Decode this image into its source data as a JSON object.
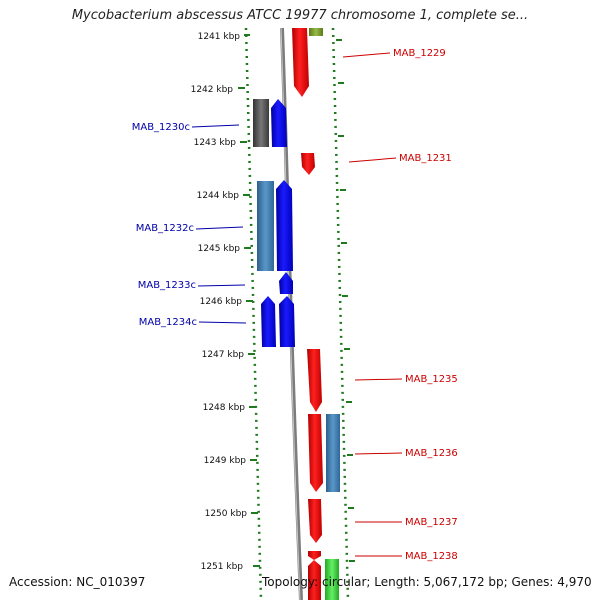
{
  "title": "Mycobacterium abscessus ATCC 19977 chromosome 1, complete se...",
  "footer": {
    "accession": "Accession: NC_010397",
    "summary": "Topology: circular; Length: 5,067,172 bp; Genes: 4,970"
  },
  "colors": {
    "tick": "#1f7a1f",
    "backbone": "#8a8a8a",
    "forward_gene": "#ff0000",
    "reverse_gene": "#0000ee",
    "forward_label": "#cc0000",
    "reverse_label": "#0000aa",
    "steelblue_feature": "#3f7fb5",
    "gray_feature": "#555555",
    "green_feature": "#33cc33",
    "olive_feature": "#7a9a2a"
  },
  "scale_ticks": [
    {
      "kbp": 1241,
      "label": "1241 kbp"
    },
    {
      "kbp": 1242,
      "label": "1242 kbp"
    },
    {
      "kbp": 1243,
      "label": "1243 kbp"
    },
    {
      "kbp": 1244,
      "label": "1244 kbp"
    },
    {
      "kbp": 1245,
      "label": "1245 kbp"
    },
    {
      "kbp": 1246,
      "label": "1246 kbp"
    },
    {
      "kbp": 1247,
      "label": "1247 kbp"
    },
    {
      "kbp": 1248,
      "label": "1248 kbp"
    },
    {
      "kbp": 1249,
      "label": "1249 kbp"
    },
    {
      "kbp": 1250,
      "label": "1250 kbp"
    },
    {
      "kbp": 1251,
      "label": "1251 kbp"
    }
  ],
  "genes": [
    {
      "label": "MAB_1229",
      "strand": "+",
      "start_kbp": 1240.8,
      "end_kbp": 1242.2
    },
    {
      "label": "MAB_1230c",
      "strand": "-",
      "start_kbp": 1242.2,
      "end_kbp": 1243.1
    },
    {
      "label": "MAB_1231",
      "strand": "+",
      "start_kbp": 1243.2,
      "end_kbp": 1243.6
    },
    {
      "label": "MAB_1232c",
      "strand": "-",
      "start_kbp": 1244.0,
      "end_kbp": 1245.7
    },
    {
      "label": "MAB_1233c",
      "strand": "-",
      "start_kbp": 1245.8,
      "end_kbp": 1246.2
    },
    {
      "label": "MAB_1234c",
      "strand": "-",
      "start_kbp": 1246.3,
      "end_kbp": 1247.2
    },
    {
      "label": "MAB_1235",
      "strand": "+",
      "start_kbp": 1247.2,
      "end_kbp": 1248.3
    },
    {
      "label": "MAB_1236",
      "strand": "+",
      "start_kbp": 1248.4,
      "end_kbp": 1249.9
    },
    {
      "label": "MAB_1237",
      "strand": "+",
      "start_kbp": 1250.0,
      "end_kbp": 1250.8
    },
    {
      "label": "MAB_1238",
      "strand": "+",
      "start_kbp": 1250.9,
      "end_kbp": 1251.5
    }
  ]
}
